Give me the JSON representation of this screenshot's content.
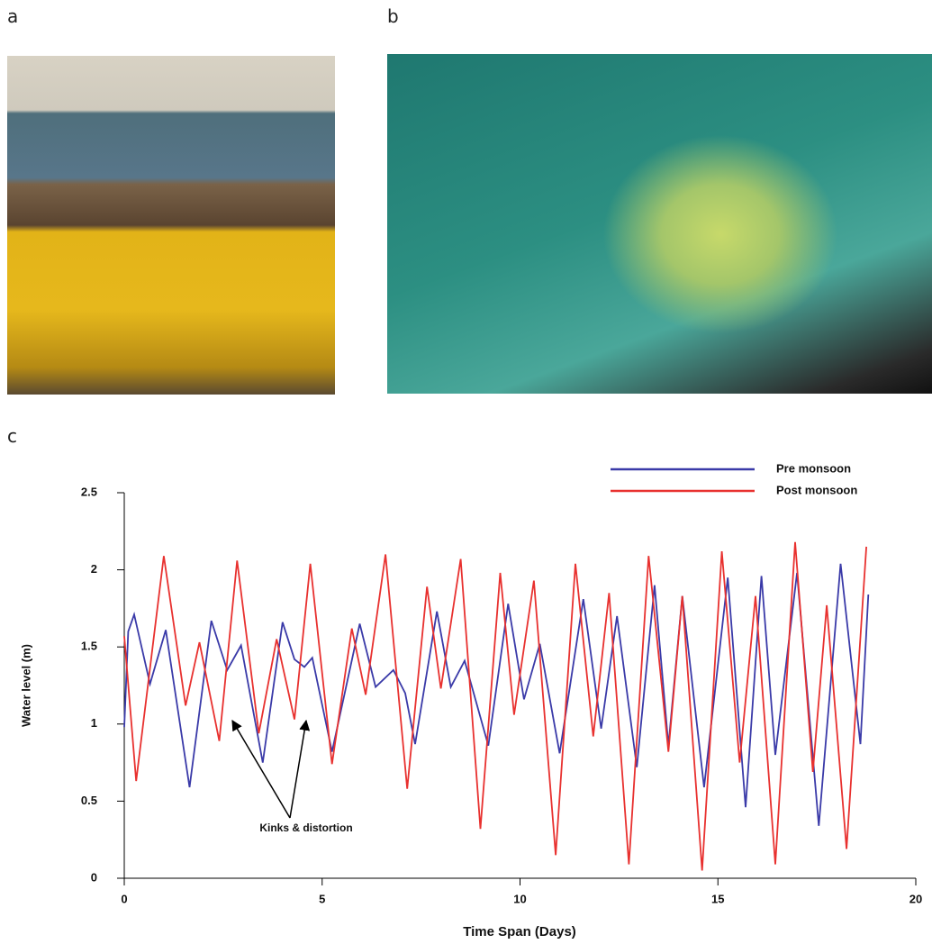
{
  "panel_labels": [
    "a",
    "b",
    "c"
  ],
  "chart_data": {
    "type": "line",
    "ylabel": "Water level (m)",
    "xlabel": "Time Span (Days)",
    "annotation": "Kinks & distortion",
    "xlim": [
      0,
      20
    ],
    "xticks": [
      0,
      5,
      10,
      15,
      20
    ],
    "ylim": [
      0,
      2.5
    ],
    "yticks": [
      0,
      0.5,
      1,
      1.5,
      2,
      2.5
    ],
    "legend": "upper right",
    "series": [
      {
        "name": "Pre monsoon",
        "color": "#3a3aa8",
        "x": [
          0,
          0.1,
          0.25,
          0.65,
          1.05,
          1.65,
          2.2,
          2.6,
          2.95,
          3.5,
          4.0,
          4.3,
          4.55,
          4.75,
          5.25,
          5.95,
          6.35,
          6.8,
          7.1,
          7.35,
          7.9,
          8.25,
          8.6,
          9.2,
          9.7,
          10.1,
          10.5,
          11.0,
          11.6,
          12.05,
          12.45,
          12.95,
          13.4,
          13.75,
          14.1,
          14.65,
          15.25,
          15.7,
          16.1,
          16.45,
          17.0,
          17.55,
          18.1,
          18.6,
          18.8
        ],
        "values": [
          0.98,
          1.6,
          1.71,
          1.26,
          1.61,
          0.59,
          1.67,
          1.35,
          1.51,
          0.75,
          1.66,
          1.42,
          1.37,
          1.43,
          0.82,
          1.65,
          1.24,
          1.35,
          1.2,
          0.87,
          1.73,
          1.24,
          1.41,
          0.86,
          1.78,
          1.16,
          1.52,
          0.81,
          1.81,
          0.97,
          1.7,
          0.72,
          1.9,
          0.86,
          1.83,
          0.59,
          1.95,
          0.46,
          1.96,
          0.8,
          1.98,
          0.34,
          2.04,
          0.87,
          1.84
        ]
      },
      {
        "name": "Post monsoon",
        "color": "#e8312f",
        "x": [
          0,
          0.3,
          1.0,
          1.55,
          1.9,
          2.4,
          2.85,
          3.4,
          3.85,
          4.3,
          4.7,
          5.25,
          5.75,
          6.1,
          6.6,
          7.15,
          7.65,
          8.0,
          8.5,
          9.0,
          9.5,
          9.85,
          10.35,
          10.9,
          11.4,
          11.85,
          12.25,
          12.75,
          13.25,
          13.75,
          14.1,
          14.6,
          15.1,
          15.55,
          15.95,
          16.45,
          16.95,
          17.4,
          17.75,
          18.25,
          18.75
        ],
        "values": [
          1.57,
          0.63,
          2.09,
          1.12,
          1.53,
          0.89,
          2.06,
          0.94,
          1.55,
          1.03,
          2.04,
          0.74,
          1.62,
          1.19,
          2.1,
          0.58,
          1.89,
          1.23,
          2.07,
          0.32,
          1.98,
          1.06,
          1.93,
          0.15,
          2.04,
          0.92,
          1.85,
          0.09,
          2.09,
          0.82,
          1.83,
          0.05,
          2.12,
          0.75,
          1.83,
          0.09,
          2.18,
          0.69,
          1.77,
          0.19,
          2.15
        ]
      }
    ]
  }
}
